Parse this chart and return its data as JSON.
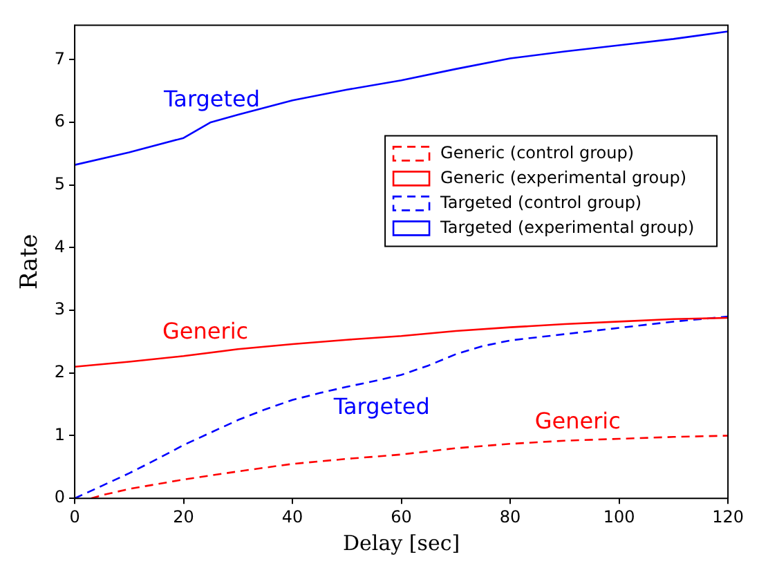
{
  "chart_data": {
    "type": "line",
    "xlabel": "Delay [sec]",
    "ylabel": "Rate",
    "xlim": [
      0,
      120
    ],
    "xticks": [
      0,
      20,
      40,
      60,
      80,
      100,
      120
    ],
    "ylim": [
      0,
      7.55
    ],
    "yticks": [
      0,
      1,
      2,
      3,
      4,
      5,
      6,
      7
    ],
    "grid": false,
    "legend": "top right",
    "marker": "none",
    "series": [
      {
        "name": "Generic (control group)",
        "color": "#ff0000",
        "line_style": "dashed",
        "x": [
          3,
          5,
          10,
          20,
          30,
          40,
          50,
          60,
          70,
          80,
          90,
          100,
          110,
          120
        ],
        "values": [
          0,
          0.05,
          0.15,
          0.3,
          0.43,
          0.55,
          0.63,
          0.7,
          0.8,
          0.87,
          0.92,
          0.95,
          0.98,
          1.0
        ]
      },
      {
        "name": "Generic (experimental group)",
        "color": "#ff0000",
        "line_style": "solid",
        "x": [
          0,
          10,
          20,
          30,
          40,
          50,
          60,
          70,
          80,
          90,
          100,
          110,
          120
        ],
        "values": [
          2.1,
          2.18,
          2.27,
          2.38,
          2.46,
          2.53,
          2.59,
          2.67,
          2.73,
          2.78,
          2.82,
          2.86,
          2.88
        ]
      },
      {
        "name": "Targeted (control group)",
        "color": "#0000ff",
        "line_style": "dashed",
        "x": [
          0,
          5,
          10,
          15,
          20,
          25,
          30,
          35,
          40,
          45,
          50,
          55,
          60,
          65,
          70,
          75,
          80,
          90,
          100,
          110,
          120
        ],
        "values": [
          0,
          0.2,
          0.4,
          0.62,
          0.85,
          1.05,
          1.25,
          1.42,
          1.57,
          1.68,
          1.78,
          1.87,
          1.97,
          2.12,
          2.3,
          2.43,
          2.52,
          2.62,
          2.72,
          2.82,
          2.9
        ]
      },
      {
        "name": "Targeted (experimental group)",
        "color": "#0000ff",
        "line_style": "solid",
        "x": [
          0,
          10,
          20,
          25,
          30,
          40,
          50,
          60,
          70,
          80,
          90,
          100,
          110,
          120
        ],
        "values": [
          5.32,
          5.52,
          5.75,
          6.0,
          6.12,
          6.35,
          6.52,
          6.67,
          6.85,
          7.02,
          7.13,
          7.23,
          7.33,
          7.45
        ]
      }
    ],
    "annotations": [
      "Targeted",
      "Generic",
      "Targeted",
      "Generic"
    ]
  }
}
